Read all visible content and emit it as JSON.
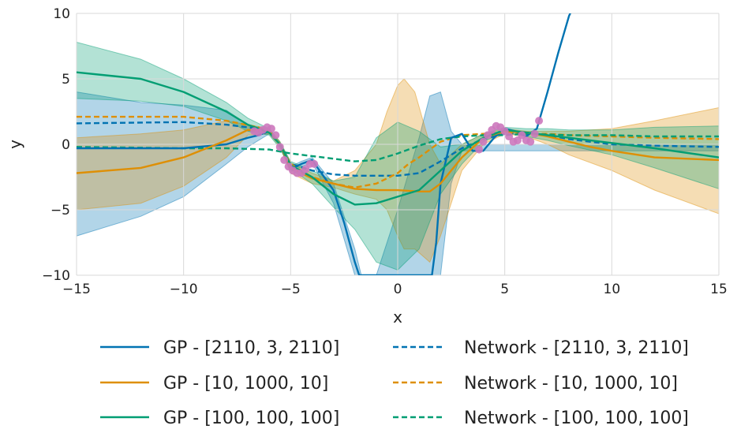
{
  "chart_data": {
    "type": "line",
    "xlabel": "x",
    "ylabel": "y",
    "xlim": [
      -15,
      15
    ],
    "ylim": [
      -10,
      10
    ],
    "xticks": [
      -15,
      -10,
      -5,
      0,
      5,
      10,
      15
    ],
    "xtick_labels": [
      "−15",
      "−10",
      "−5",
      "0",
      "5",
      "10",
      "15"
    ],
    "yticks": [
      -10,
      -5,
      0,
      5,
      10
    ],
    "ytick_labels": [
      "−10",
      "−5",
      "0",
      "5",
      "10"
    ],
    "grid": true,
    "legend_position": "bottom",
    "colors": {
      "blue": "#0173b2",
      "orange": "#de8f05",
      "green": "#029e73",
      "points": "#cc78bc"
    },
    "series": [
      {
        "name": "GP - [2110, 3, 2110]",
        "style": "solid",
        "color": "blue",
        "x": [
          -15,
          -10,
          -8,
          -7,
          -6.5,
          -6,
          -5.5,
          -5,
          -4.5,
          -4,
          -3,
          -2.5,
          -2,
          -1.8,
          1.6,
          1.8,
          2,
          2.5,
          3,
          3.5,
          4,
          4.5,
          5,
          5.5,
          6,
          6.5,
          7,
          7.5,
          8,
          8.2
        ],
        "y": [
          -0.3,
          -0.3,
          0,
          0.5,
          0.7,
          1,
          0,
          -1.9,
          -1.5,
          -1.2,
          -3.5,
          -6,
          -9,
          -10,
          -10,
          -7.5,
          -3,
          0.5,
          0.8,
          -0.5,
          -0.5,
          0.5,
          1.2,
          1,
          0.6,
          1.2,
          4,
          7,
          9.8,
          10.5
        ]
      },
      {
        "name": "GP - [10, 1000, 10]",
        "style": "solid",
        "color": "orange",
        "x": [
          -15,
          -12,
          -10,
          -8,
          -7,
          -6,
          -5.5,
          -5,
          -4,
          -3,
          -2,
          -1,
          0,
          1,
          1.5,
          2,
          3,
          4,
          5,
          6,
          7,
          8,
          9,
          10,
          12,
          15
        ],
        "y": [
          -2.2,
          -1.8,
          -1,
          0.3,
          1.1,
          1,
          0,
          -1.8,
          -2.6,
          -3,
          -3.4,
          -3.5,
          -3.5,
          -3.6,
          -3.6,
          -3,
          -1,
          0.5,
          1,
          0.9,
          0.6,
          0.2,
          -0.2,
          -0.5,
          -1,
          -1.2
        ]
      },
      {
        "name": "GP - [100, 100, 100]",
        "style": "solid",
        "color": "green",
        "x": [
          -15,
          -12,
          -10,
          -8,
          -7,
          -6,
          -5.5,
          -5,
          -4,
          -3,
          -2,
          -1,
          0,
          1,
          2,
          3,
          4,
          5,
          6,
          7,
          8,
          10,
          12,
          15
        ],
        "y": [
          5.5,
          5,
          4,
          2.5,
          1.5,
          0.9,
          0,
          -1.6,
          -2.5,
          -3.8,
          -4.6,
          -4.5,
          -4,
          -3.5,
          -2,
          -0.5,
          0.5,
          1.1,
          0.9,
          0.7,
          0.5,
          0.1,
          -0.3,
          -1
        ]
      },
      {
        "name": "Network - [2110, 3, 2110]",
        "style": "dashed",
        "color": "blue",
        "x": [
          -15,
          -10,
          -8,
          -6.5,
          -6,
          -5.5,
          -5,
          -4,
          -3,
          -2,
          -1,
          0,
          1,
          2,
          3,
          4,
          5,
          6,
          7,
          8,
          10,
          12,
          15
        ],
        "y": [
          1.6,
          1.7,
          1.5,
          1.2,
          0.9,
          0,
          -1.5,
          -2,
          -2.3,
          -2.4,
          -2.4,
          -2.4,
          -2.2,
          -1.3,
          -0.3,
          0.4,
          0.8,
          0.9,
          0.7,
          0.4,
          0,
          -0.1,
          -0.2
        ]
      },
      {
        "name": "Network - [10, 1000, 10]",
        "style": "dashed",
        "color": "orange",
        "x": [
          -15,
          -10,
          -8,
          -6.5,
          -6,
          -5.5,
          -5,
          -4,
          -3,
          -2,
          -1,
          0,
          0.5,
          1,
          2,
          3,
          4,
          5,
          6,
          7,
          8,
          10,
          12,
          15
        ],
        "y": [
          2.1,
          2.1,
          1.8,
          1.3,
          0.9,
          0,
          -1.5,
          -2.5,
          -3,
          -3.3,
          -3,
          -2.2,
          -1.5,
          -1,
          0.2,
          0.7,
          0.8,
          0.9,
          0.8,
          0.8,
          0.7,
          0.6,
          0.5,
          0.4
        ]
      },
      {
        "name": "Network - [100, 100, 100]",
        "style": "dashed",
        "color": "green",
        "x": [
          -15,
          -10,
          -8,
          -6,
          -5,
          -4,
          -3,
          -2,
          -1,
          0,
          1,
          2,
          3,
          4,
          5,
          6,
          8,
          10,
          12,
          15
        ],
        "y": [
          -0.2,
          -0.3,
          -0.3,
          -0.4,
          -0.7,
          -0.9,
          -1.1,
          -1.3,
          -1.2,
          -0.7,
          -0.1,
          0.4,
          0.6,
          0.7,
          0.7,
          0.8,
          0.7,
          0.7,
          0.6,
          0.6
        ]
      }
    ],
    "bands": [
      {
        "series": "GP - [2110, 3, 2110]",
        "color": "blue",
        "x": [
          -15,
          -12,
          -10,
          -8,
          -7,
          -6,
          -5.5,
          -5,
          -4.5,
          -4,
          -3,
          -2,
          -1.7,
          -1,
          0,
          1,
          1.5,
          2,
          2.5,
          3,
          15
        ],
        "upper": [
          4,
          3.2,
          3,
          2.6,
          1.5,
          1.1,
          0,
          -1.7,
          -1.3,
          -1,
          -3,
          -8,
          -10,
          -10,
          -5,
          0.5,
          3.7,
          4,
          1,
          0,
          0
        ],
        "lower": [
          -7,
          -5.5,
          -4,
          -1.5,
          -0.2,
          0.8,
          0,
          -2.1,
          -1.7,
          -1.4,
          -4.5,
          -10,
          -10,
          -10,
          -10,
          -10,
          -10,
          -10,
          -3,
          -0.5,
          -0.5
        ]
      },
      {
        "series": "GP - [10, 1000, 10]",
        "color": "orange",
        "x": [
          -15,
          -12,
          -10,
          -8,
          -7,
          -6,
          -5.5,
          -5,
          -4,
          -3,
          -2,
          -1,
          -0.5,
          0,
          0.3,
          0.8,
          1.5,
          2,
          3,
          4,
          5,
          6,
          7,
          8,
          10,
          12,
          15
        ],
        "upper": [
          0.5,
          0.8,
          1.1,
          1.8,
          1.5,
          1.2,
          0.2,
          -1.4,
          -2.2,
          -2.8,
          -2,
          0,
          2.5,
          4.5,
          5,
          4,
          0,
          -1.5,
          0,
          0.8,
          1.2,
          1,
          1,
          1,
          1.2,
          1.8,
          2.8
        ],
        "lower": [
          -5,
          -4.5,
          -3.2,
          -1,
          0.7,
          0.8,
          -0.2,
          -2.2,
          -3,
          -3.3,
          -3.8,
          -4.2,
          -5,
          -7,
          -8,
          -8,
          -9,
          -7,
          -2,
          0,
          0.8,
          0.6,
          0,
          -0.8,
          -2,
          -3.5,
          -5.3
        ]
      },
      {
        "series": "GP - [100, 100, 100]",
        "color": "green",
        "x": [
          -15,
          -12,
          -10,
          -8,
          -7,
          -6,
          -5.5,
          -5,
          -4,
          -3,
          -2,
          -1,
          0,
          1,
          2,
          3,
          4,
          5,
          6,
          7,
          8,
          10,
          12,
          15
        ],
        "upper": [
          7.8,
          6.5,
          5,
          3.2,
          2,
          1.2,
          0.2,
          -1.3,
          -2,
          -2.8,
          -2.5,
          0.5,
          1.7,
          1,
          -0.2,
          0,
          0.8,
          1.3,
          1.2,
          1.2,
          1.1,
          1.1,
          1.3,
          1.4
        ],
        "lower": [
          3.5,
          3.3,
          2.9,
          1.8,
          1,
          0.7,
          -0.3,
          -1.9,
          -3,
          -4.8,
          -6.5,
          -9,
          -9.6,
          -8,
          -3.8,
          -1.5,
          0.2,
          0.9,
          0.6,
          0.3,
          -0.1,
          -0.8,
          -1.8,
          -3.4
        ]
      }
    ],
    "observations": {
      "color": "points",
      "x": [
        -6.7,
        -6.5,
        -6.3,
        -6.1,
        -5.9,
        -5.7,
        -5.5,
        -5.3,
        -5.1,
        -4.9,
        -4.7,
        -4.5,
        -4.3,
        -4.1,
        -3.9,
        3.8,
        4.0,
        4.2,
        4.4,
        4.6,
        4.8,
        5.0,
        5.2,
        5.4,
        5.6,
        5.8,
        6.0,
        6.2,
        6.4,
        6.6
      ],
      "y": [
        1.0,
        0.9,
        1.1,
        1.3,
        1.2,
        0.7,
        -0.2,
        -1.2,
        -1.7,
        -2.0,
        -2.2,
        -2.2,
        -1.9,
        -1.5,
        -1.5,
        -0.4,
        0.2,
        0.7,
        1.1,
        1.4,
        1.3,
        1.0,
        0.6,
        0.2,
        0.3,
        0.7,
        0.3,
        0.2,
        0.8,
        1.8
      ]
    }
  }
}
